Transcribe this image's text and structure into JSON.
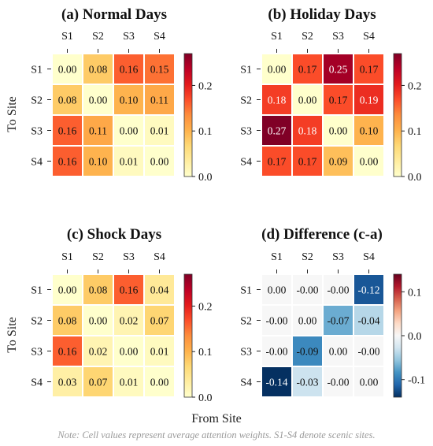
{
  "figure": {
    "xlabel": "From Site",
    "ylabel": "To Site",
    "note": "Note: Cell values represent average attention weights. S1-S4 denote scenic sites."
  },
  "colors": {
    "sequential": [
      "#ffffcc",
      "#ffeda0",
      "#fed976",
      "#feb24c",
      "#fd8d3c",
      "#fc4e2a",
      "#e31a1c",
      "#bd0026",
      "#800026"
    ],
    "diverging": [
      "#053061",
      "#2166ac",
      "#4393c3",
      "#92c5de",
      "#d1e5f0",
      "#f7f7f7",
      "#fddbc7",
      "#f4a582",
      "#d6604d",
      "#b2182b",
      "#67001f"
    ]
  },
  "chart_data": [
    {
      "type": "heatmap",
      "title": "(a) Normal Days",
      "x_categories": [
        "S1",
        "S2",
        "S3",
        "S4"
      ],
      "y_categories": [
        "S1",
        "S2",
        "S3",
        "S4"
      ],
      "values": [
        [
          0.0,
          0.08,
          0.16,
          0.15
        ],
        [
          0.08,
          0.0,
          0.1,
          0.11
        ],
        [
          0.16,
          0.11,
          0.0,
          0.01
        ],
        [
          0.16,
          0.1,
          0.01,
          0.0
        ]
      ],
      "labels": [
        [
          "0.00",
          "0.08",
          "0.16",
          "0.15"
        ],
        [
          "0.08",
          "0.00",
          "0.10",
          "0.11"
        ],
        [
          "0.16",
          "0.11",
          "0.00",
          "0.01"
        ],
        [
          "0.16",
          "0.10",
          "0.01",
          "0.00"
        ]
      ],
      "colormap": "sequential",
      "vmin": 0.0,
      "vmax": 0.27,
      "colorbar_ticks": [
        0.0,
        0.1,
        0.2
      ],
      "colorbar_tick_labels": [
        "0.0",
        "0.1",
        "0.2"
      ]
    },
    {
      "type": "heatmap",
      "title": "(b) Holiday Days",
      "x_categories": [
        "S1",
        "S2",
        "S3",
        "S4"
      ],
      "y_categories": [
        "S1",
        "S2",
        "S3",
        "S4"
      ],
      "values": [
        [
          0.0,
          0.17,
          0.25,
          0.17
        ],
        [
          0.18,
          0.0,
          0.17,
          0.19
        ],
        [
          0.27,
          0.18,
          0.0,
          0.1
        ],
        [
          0.17,
          0.17,
          0.09,
          0.0
        ]
      ],
      "labels": [
        [
          "0.00",
          "0.17",
          "0.25",
          "0.17"
        ],
        [
          "0.18",
          "0.00",
          "0.17",
          "0.19"
        ],
        [
          "0.27",
          "0.18",
          "0.00",
          "0.10"
        ],
        [
          "0.17",
          "0.17",
          "0.09",
          "0.00"
        ]
      ],
      "colormap": "sequential",
      "vmin": 0.0,
      "vmax": 0.27,
      "colorbar_ticks": [
        0.0,
        0.1,
        0.2
      ],
      "colorbar_tick_labels": [
        "0.0",
        "0.1",
        "0.2"
      ]
    },
    {
      "type": "heatmap",
      "title": "(c) Shock Days",
      "x_categories": [
        "S1",
        "S2",
        "S3",
        "S4"
      ],
      "y_categories": [
        "S1",
        "S2",
        "S3",
        "S4"
      ],
      "values": [
        [
          0.0,
          0.08,
          0.16,
          0.04
        ],
        [
          0.08,
          0.0,
          0.02,
          0.07
        ],
        [
          0.16,
          0.02,
          0.0,
          0.01
        ],
        [
          0.03,
          0.07,
          0.01,
          0.0
        ]
      ],
      "labels": [
        [
          "0.00",
          "0.08",
          "0.16",
          "0.04"
        ],
        [
          "0.08",
          "0.00",
          "0.02",
          "0.07"
        ],
        [
          "0.16",
          "0.02",
          "0.00",
          "0.01"
        ],
        [
          "0.03",
          "0.07",
          "0.01",
          "0.00"
        ]
      ],
      "colormap": "sequential",
      "vmin": 0.0,
      "vmax": 0.27,
      "colorbar_ticks": [
        0.0,
        0.1,
        0.2
      ],
      "colorbar_tick_labels": [
        "0.0",
        "0.1",
        "0.2"
      ]
    },
    {
      "type": "heatmap",
      "title": "(d) Difference (c-a)",
      "x_categories": [
        "S1",
        "S2",
        "S3",
        "S4"
      ],
      "y_categories": [
        "S1",
        "S2",
        "S3",
        "S4"
      ],
      "values": [
        [
          0.0,
          -0.0,
          -0.0,
          -0.12
        ],
        [
          -0.0,
          0.0,
          -0.07,
          -0.04
        ],
        [
          -0.0,
          -0.09,
          0.0,
          -0.0
        ],
        [
          -0.14,
          -0.03,
          -0.0,
          0.0
        ]
      ],
      "labels": [
        [
          "0.00",
          "-0.00",
          "-0.00",
          "-0.12"
        ],
        [
          "-0.00",
          "0.00",
          "-0.07",
          "-0.04"
        ],
        [
          "-0.00",
          "-0.09",
          "0.00",
          "-0.00"
        ],
        [
          "-0.14",
          "-0.03",
          "-0.00",
          "0.00"
        ]
      ],
      "colormap": "diverging",
      "vmin": -0.14,
      "vmax": 0.14,
      "colorbar_ticks": [
        0.1,
        0.0,
        -0.1
      ],
      "colorbar_tick_labels": [
        "0.1",
        "0.0",
        "-0.1"
      ]
    }
  ]
}
